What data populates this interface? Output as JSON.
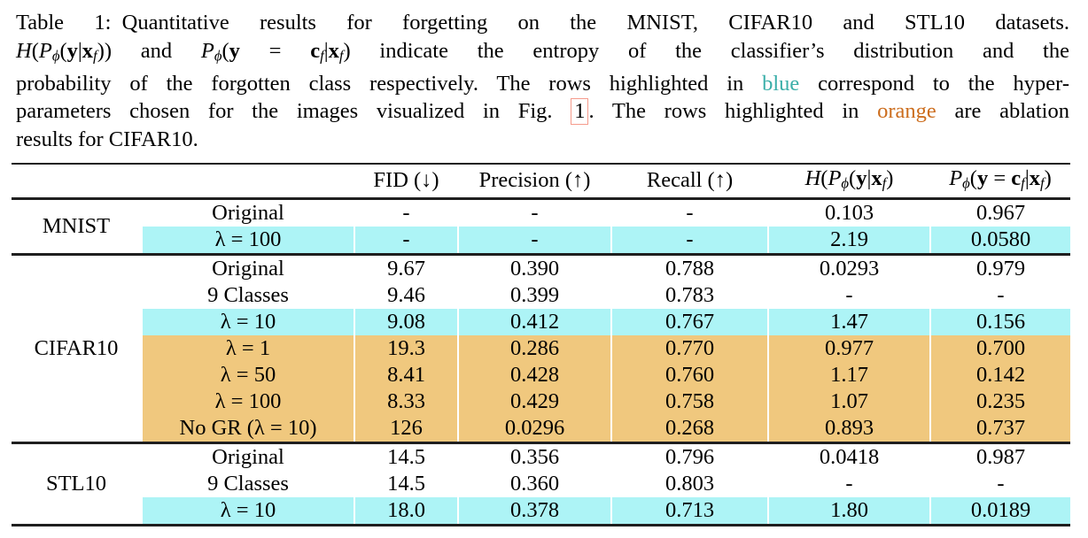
{
  "colors": {
    "row_highlight_blue": "#ADF4F6",
    "row_highlight_orange": "#F0C87E",
    "caption_blue": "#3BAFA9",
    "caption_orange": "#CC6D1D",
    "figref_border": "#F59B8C",
    "rule_color": "#1f1f1f"
  },
  "caption": {
    "lines": [
      {
        "segments": [
          {
            "x": "Table 1: Quantitative results for forgetting on the MNIST, CIFAR10 and STL10 datasets.",
            "s": "t"
          }
        ]
      },
      {
        "segments": [
          {
            "x": "H",
            "s": "i"
          },
          {
            "x": "(",
            "s": "t"
          },
          {
            "x": "P",
            "s": "i"
          },
          {
            "x": "ϕ",
            "s": "isub"
          },
          {
            "x": "(",
            "s": "t"
          },
          {
            "x": "y",
            "s": "b"
          },
          {
            "x": "|",
            "s": "t"
          },
          {
            "x": "x",
            "s": "b"
          },
          {
            "x": "f",
            "s": "isub"
          },
          {
            "x": ")) and ",
            "s": "t"
          },
          {
            "x": "P",
            "s": "i"
          },
          {
            "x": "ϕ",
            "s": "isub"
          },
          {
            "x": "(",
            "s": "t"
          },
          {
            "x": "y",
            "s": "b"
          },
          {
            "x": " = ",
            "s": "t"
          },
          {
            "x": "c",
            "s": "b"
          },
          {
            "x": "f",
            "s": "isub"
          },
          {
            "x": "|",
            "s": "t"
          },
          {
            "x": "x",
            "s": "b"
          },
          {
            "x": "f",
            "s": "isub"
          },
          {
            "x": ")",
            "s": "t"
          },
          {
            "x": " indicate the entropy of the classifier’s distribution and the",
            "s": "t"
          }
        ]
      },
      {
        "segments": [
          {
            "x": "probability of the forgotten class respectively. The rows highlighted in ",
            "s": "t"
          },
          {
            "x": "blue",
            "s": "blue",
            "name": "blue-highlight-word"
          },
          {
            "x": " correspond to the hyper-",
            "s": "t"
          }
        ]
      },
      {
        "segments": [
          {
            "x": "parameters chosen for the images visualized in Fig. ",
            "s": "t"
          },
          {
            "x": "1",
            "s": "ref",
            "name": "figure-1-link",
            "inter": true
          },
          {
            "x": ". The rows highlighted in ",
            "s": "t"
          },
          {
            "x": "orange",
            "s": "orange",
            "name": "orange-highlight-word"
          },
          {
            "x": " are ablation",
            "s": "t"
          }
        ]
      },
      {
        "segments": [
          {
            "x": "results for CIFAR10.",
            "s": "t"
          }
        ]
      }
    ]
  },
  "table": {
    "columns": [
      {
        "id": "dataset",
        "segments": []
      },
      {
        "id": "variant",
        "segments": []
      },
      {
        "id": "fid",
        "segments": [
          {
            "x": "FID (↓)",
            "s": "t"
          }
        ]
      },
      {
        "id": "precision",
        "segments": [
          {
            "x": "Precision (↑)",
            "s": "t"
          }
        ]
      },
      {
        "id": "recall",
        "segments": [
          {
            "x": "Recall (↑)",
            "s": "t"
          }
        ]
      },
      {
        "id": "entropy",
        "segments": [
          {
            "x": "H",
            "s": "i"
          },
          {
            "x": "(",
            "s": "t"
          },
          {
            "x": "P",
            "s": "i"
          },
          {
            "x": "ϕ",
            "s": "isub"
          },
          {
            "x": "(",
            "s": "t"
          },
          {
            "x": "y",
            "s": "b"
          },
          {
            "x": "|",
            "s": "t"
          },
          {
            "x": "x",
            "s": "b"
          },
          {
            "x": "f",
            "s": "isub"
          },
          {
            "x": ")",
            "s": "t"
          }
        ]
      },
      {
        "id": "forgotten-prob",
        "segments": [
          {
            "x": "P",
            "s": "i"
          },
          {
            "x": "ϕ",
            "s": "isub"
          },
          {
            "x": "(",
            "s": "t"
          },
          {
            "x": "y",
            "s": "b"
          },
          {
            "x": " = ",
            "s": "t"
          },
          {
            "x": "c",
            "s": "b"
          },
          {
            "x": "f",
            "s": "isub"
          },
          {
            "x": "|",
            "s": "t"
          },
          {
            "x": "x",
            "s": "b"
          },
          {
            "x": "f",
            "s": "isub"
          },
          {
            "x": ")",
            "s": "t"
          }
        ]
      }
    ],
    "rows": [
      {
        "dataset": "MNIST",
        "label": "Original",
        "highlight": "none",
        "values": [
          "-",
          "-",
          "-",
          "0.103",
          "0.967"
        ]
      },
      {
        "label": "λ = 100",
        "highlight": "blue",
        "values": [
          "-",
          "-",
          "-",
          "2.19",
          "0.0580"
        ]
      },
      {
        "dataset": "CIFAR10",
        "label": "Original",
        "highlight": "none",
        "values": [
          "9.67",
          "0.390",
          "0.788",
          "0.0293",
          "0.979"
        ]
      },
      {
        "label": "9 Classes",
        "highlight": "none",
        "values": [
          "9.46",
          "0.399",
          "0.783",
          "-",
          "-"
        ]
      },
      {
        "label": "λ = 10",
        "highlight": "blue",
        "values": [
          "9.08",
          "0.412",
          "0.767",
          "1.47",
          "0.156"
        ]
      },
      {
        "label": "λ = 1",
        "highlight": "orange",
        "values": [
          "19.3",
          "0.286",
          "0.770",
          "0.977",
          "0.700"
        ]
      },
      {
        "label": "λ = 50",
        "highlight": "orange",
        "values": [
          "8.41",
          "0.428",
          "0.760",
          "1.17",
          "0.142"
        ]
      },
      {
        "label": "λ = 100",
        "highlight": "orange",
        "values": [
          "8.33",
          "0.429",
          "0.758",
          "1.07",
          "0.235"
        ]
      },
      {
        "label": "No GR (λ = 10)",
        "highlight": "orange",
        "values": [
          "126",
          "0.0296",
          "0.268",
          "0.893",
          "0.737"
        ]
      },
      {
        "dataset": "STL10",
        "label": "Original",
        "highlight": "none",
        "values": [
          "14.5",
          "0.356",
          "0.796",
          "0.0418",
          "0.987"
        ]
      },
      {
        "label": "9 Classes",
        "highlight": "none",
        "values": [
          "14.5",
          "0.360",
          "0.803",
          "-",
          "-"
        ]
      },
      {
        "label": "λ = 10",
        "highlight": "blue",
        "values": [
          "18.0",
          "0.378",
          "0.713",
          "1.80",
          "0.0189"
        ]
      }
    ]
  }
}
